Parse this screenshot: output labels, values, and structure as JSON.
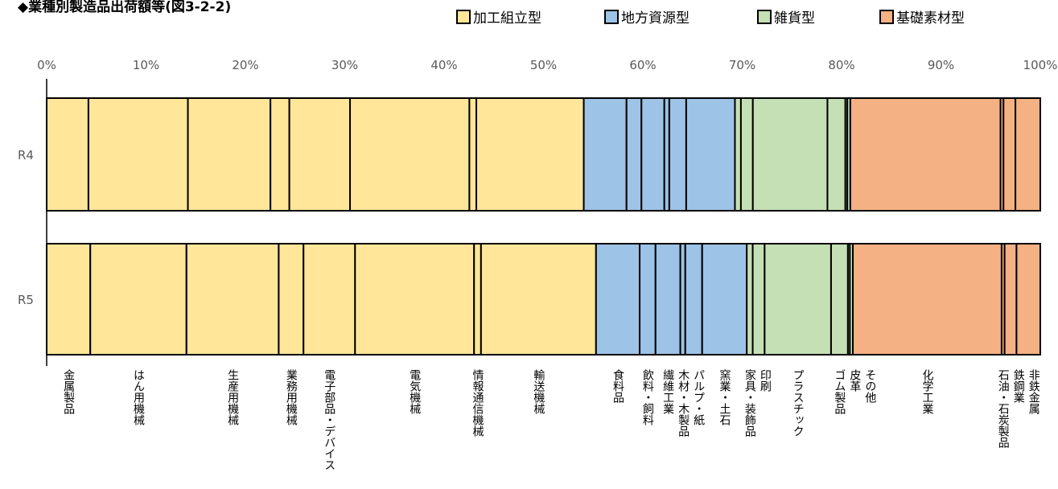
{
  "title": "◆業種別製造品出荷額等(図3-2-2)",
  "legend": [
    {
      "label": "加工組立型",
      "color": "#FFE699"
    },
    {
      "label": "地方資源型",
      "color": "#9DC3E6"
    },
    {
      "label": "雑貨型",
      "color": "#C5E0B4"
    },
    {
      "label": "基礎素材型",
      "color": "#F4B183"
    }
  ],
  "chart_data": {
    "type": "bar",
    "orientation": "horizontal",
    "stacked": "percent",
    "x_ticks": [
      "0%",
      "10%",
      "20%",
      "30%",
      "40%",
      "50%",
      "60%",
      "70%",
      "80%",
      "90%",
      "100%"
    ],
    "xlim": [
      0,
      100
    ],
    "categories": [
      "R4",
      "R5"
    ],
    "group_colors": {
      "加工組立型": "#FFE699",
      "地方資源型": "#9DC3E6",
      "雑貨型": "#C5E0B4",
      "基礎素材型": "#F4B183"
    },
    "series": [
      {
        "name": "金属製品",
        "group": "加工組立型",
        "values": [
          4.2,
          4.4
        ]
      },
      {
        "name": "はん用機械",
        "group": "加工組立型",
        "values": [
          10.0,
          9.7
        ]
      },
      {
        "name": "生産用機械",
        "group": "加工組立型",
        "values": [
          8.3,
          9.3
        ]
      },
      {
        "name": "業務用機械",
        "group": "加工組立型",
        "values": [
          1.9,
          2.5
        ]
      },
      {
        "name": "電子部品・デバイス",
        "group": "加工組立型",
        "values": [
          6.1,
          5.2
        ]
      },
      {
        "name": "電気機械",
        "group": "加工組立型",
        "values": [
          12.0,
          12.0
        ]
      },
      {
        "name": "情報通信機械",
        "group": "加工組立型",
        "values": [
          0.7,
          0.7
        ]
      },
      {
        "name": "輸送機械",
        "group": "加工組立型",
        "values": [
          10.8,
          11.6
        ]
      },
      {
        "name": "食料品",
        "group": "地方資源型",
        "values": [
          4.3,
          4.4
        ]
      },
      {
        "name": "飲料・飼料",
        "group": "地方資源型",
        "values": [
          1.5,
          1.6
        ]
      },
      {
        "name": "繊維工業",
        "group": "地方資源型",
        "values": [
          2.3,
          2.5
        ]
      },
      {
        "name": "木材・木製品",
        "group": "地方資源型",
        "values": [
          0.5,
          0.5
        ]
      },
      {
        "name": "パルプ・紙",
        "group": "地方資源型",
        "values": [
          1.7,
          1.7
        ]
      },
      {
        "name": "窯業・土石",
        "group": "地方資源型",
        "values": [
          4.9,
          4.5
        ]
      },
      {
        "name": "家具・装飾品",
        "group": "雑貨型",
        "values": [
          0.6,
          0.6
        ]
      },
      {
        "name": "印刷",
        "group": "雑貨型",
        "values": [
          1.2,
          1.2
        ]
      },
      {
        "name": "プラスチック",
        "group": "雑貨型",
        "values": [
          7.5,
          6.7
        ]
      },
      {
        "name": "ゴム製品",
        "group": "雑貨型",
        "values": [
          1.8,
          1.7
        ]
      },
      {
        "name": "皮革",
        "group": "雑貨型",
        "values": [
          0.2,
          0.2
        ]
      },
      {
        "name": "その他",
        "group": "雑貨型",
        "values": [
          0.3,
          0.3
        ]
      },
      {
        "name": "化学工業",
        "group": "基礎素材型",
        "values": [
          15.1,
          15.0
        ]
      },
      {
        "name": "石油・石炭製品",
        "group": "基礎素材型",
        "values": [
          0.3,
          0.3
        ]
      },
      {
        "name": "鉄鋼業",
        "group": "基礎素材型",
        "values": [
          1.2,
          1.2
        ]
      },
      {
        "name": "非鉄金属",
        "group": "基礎素材型",
        "values": [
          2.5,
          2.4
        ]
      }
    ]
  }
}
